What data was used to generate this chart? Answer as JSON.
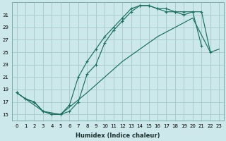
{
  "bg_color": "#cce8ea",
  "grid_color": "#a8cccc",
  "line_color": "#1a7060",
  "xlabel": "Humidex (Indice chaleur)",
  "xlim": [
    -0.5,
    23.5
  ],
  "ylim": [
    14.0,
    33.0
  ],
  "yticks": [
    15,
    17,
    19,
    21,
    23,
    25,
    27,
    29,
    31
  ],
  "xticks": [
    0,
    1,
    2,
    3,
    4,
    5,
    6,
    7,
    8,
    9,
    10,
    11,
    12,
    13,
    14,
    15,
    16,
    17,
    18,
    19,
    20,
    21,
    22,
    23
  ],
  "line1_x": [
    0,
    1,
    2,
    3,
    4,
    5,
    6,
    7,
    8,
    9,
    10,
    11,
    12,
    13,
    14,
    15,
    16,
    17,
    18,
    19,
    20,
    21
  ],
  "line1_y": [
    18.5,
    17.5,
    17.0,
    15.5,
    15.0,
    15.0,
    16.5,
    21.0,
    23.5,
    25.5,
    27.5,
    29.0,
    30.5,
    32.0,
    32.5,
    32.5,
    32.0,
    31.5,
    31.5,
    31.5,
    31.5,
    26.0
  ],
  "line2_x": [
    0,
    1,
    2,
    3,
    4,
    5,
    6,
    7,
    8,
    9,
    10,
    11,
    12,
    13,
    14,
    15,
    16,
    17,
    18,
    19,
    20,
    21,
    22
  ],
  "line2_y": [
    18.5,
    17.5,
    17.0,
    15.5,
    15.0,
    15.0,
    15.5,
    17.0,
    21.5,
    23.0,
    26.5,
    28.5,
    30.0,
    31.5,
    32.5,
    32.5,
    32.0,
    32.0,
    31.5,
    31.0,
    31.5,
    31.5,
    25.0
  ],
  "line3_x": [
    0,
    3,
    5,
    8,
    10,
    12,
    14,
    16,
    18,
    20,
    22,
    23
  ],
  "line3_y": [
    18.5,
    15.5,
    15.0,
    18.5,
    21.0,
    23.5,
    25.5,
    27.5,
    29.0,
    30.5,
    25.0,
    25.5
  ]
}
